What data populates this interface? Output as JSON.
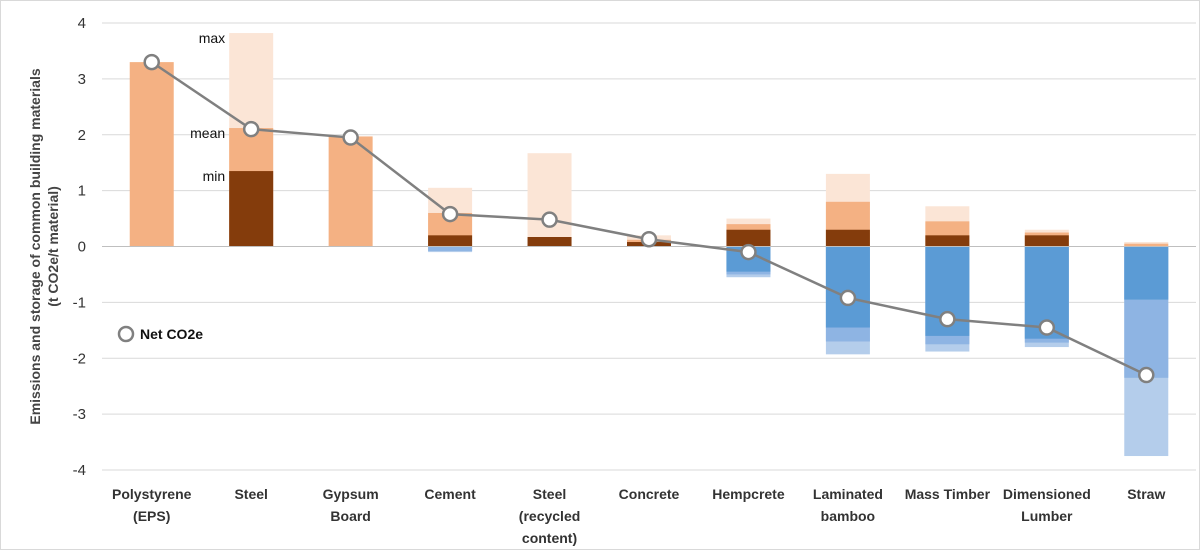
{
  "chart_data": {
    "type": "bar",
    "ylabel_lines": [
      "Emissions and storage of common building materials",
      "(t CO2e/t material)"
    ],
    "ylim": [
      -4,
      4
    ],
    "yticks": [
      4,
      3,
      2,
      1,
      0,
      -1,
      -2,
      -3,
      -4
    ],
    "grid": true,
    "legend_position": "left",
    "legend_label": "Net CO2e",
    "annotations": [
      "max",
      "mean",
      "min"
    ],
    "categories": [
      [
        "Polystyrene",
        "(EPS)"
      ],
      [
        "Steel"
      ],
      [
        "Gypsum",
        "Board"
      ],
      [
        "Cement"
      ],
      [
        "Steel",
        "(recycled",
        "content)"
      ],
      [
        "Concrete"
      ],
      [
        "Hempcrete"
      ],
      [
        "Laminated",
        "bamboo"
      ],
      [
        "Mass Timber"
      ],
      [
        "Dimensioned",
        "Lumber"
      ],
      [
        "Straw"
      ]
    ],
    "emissions_min": [
      null,
      1.35,
      null,
      0.2,
      0.17,
      0.08,
      0.3,
      0.3,
      0.2,
      0.2,
      0.0
    ],
    "emissions_mean": [
      3.3,
      2.12,
      1.97,
      0.6,
      null,
      0.12,
      0.4,
      0.8,
      0.45,
      0.25,
      0.05
    ],
    "emissions_max": [
      null,
      3.82,
      null,
      1.05,
      1.67,
      0.2,
      0.5,
      1.3,
      0.72,
      0.3,
      0.08
    ],
    "storage_min": [
      null,
      null,
      null,
      null,
      null,
      null,
      -0.45,
      -1.45,
      -1.6,
      -1.65,
      -0.95
    ],
    "storage_mean": [
      null,
      null,
      null,
      -0.08,
      null,
      null,
      -0.5,
      -1.7,
      -1.75,
      -1.72,
      -2.35
    ],
    "storage_max": [
      null,
      null,
      null,
      -0.1,
      null,
      null,
      -0.55,
      -1.93,
      -1.88,
      -1.8,
      -3.75
    ],
    "net_co2e": [
      3.3,
      2.1,
      1.95,
      0.58,
      0.48,
      0.13,
      -0.1,
      -0.92,
      -1.3,
      -1.45,
      -2.3
    ],
    "colors": {
      "emissions_min": "#843c0c",
      "emissions_mean": "#f4b183",
      "emissions_max": "#fbe5d6",
      "storage_min": "#5b9bd5",
      "storage_mean": "#8eb4e3",
      "storage_max": "#b4cdeb",
      "net_line": "#808080",
      "grid": "#d9d9d9"
    }
  }
}
